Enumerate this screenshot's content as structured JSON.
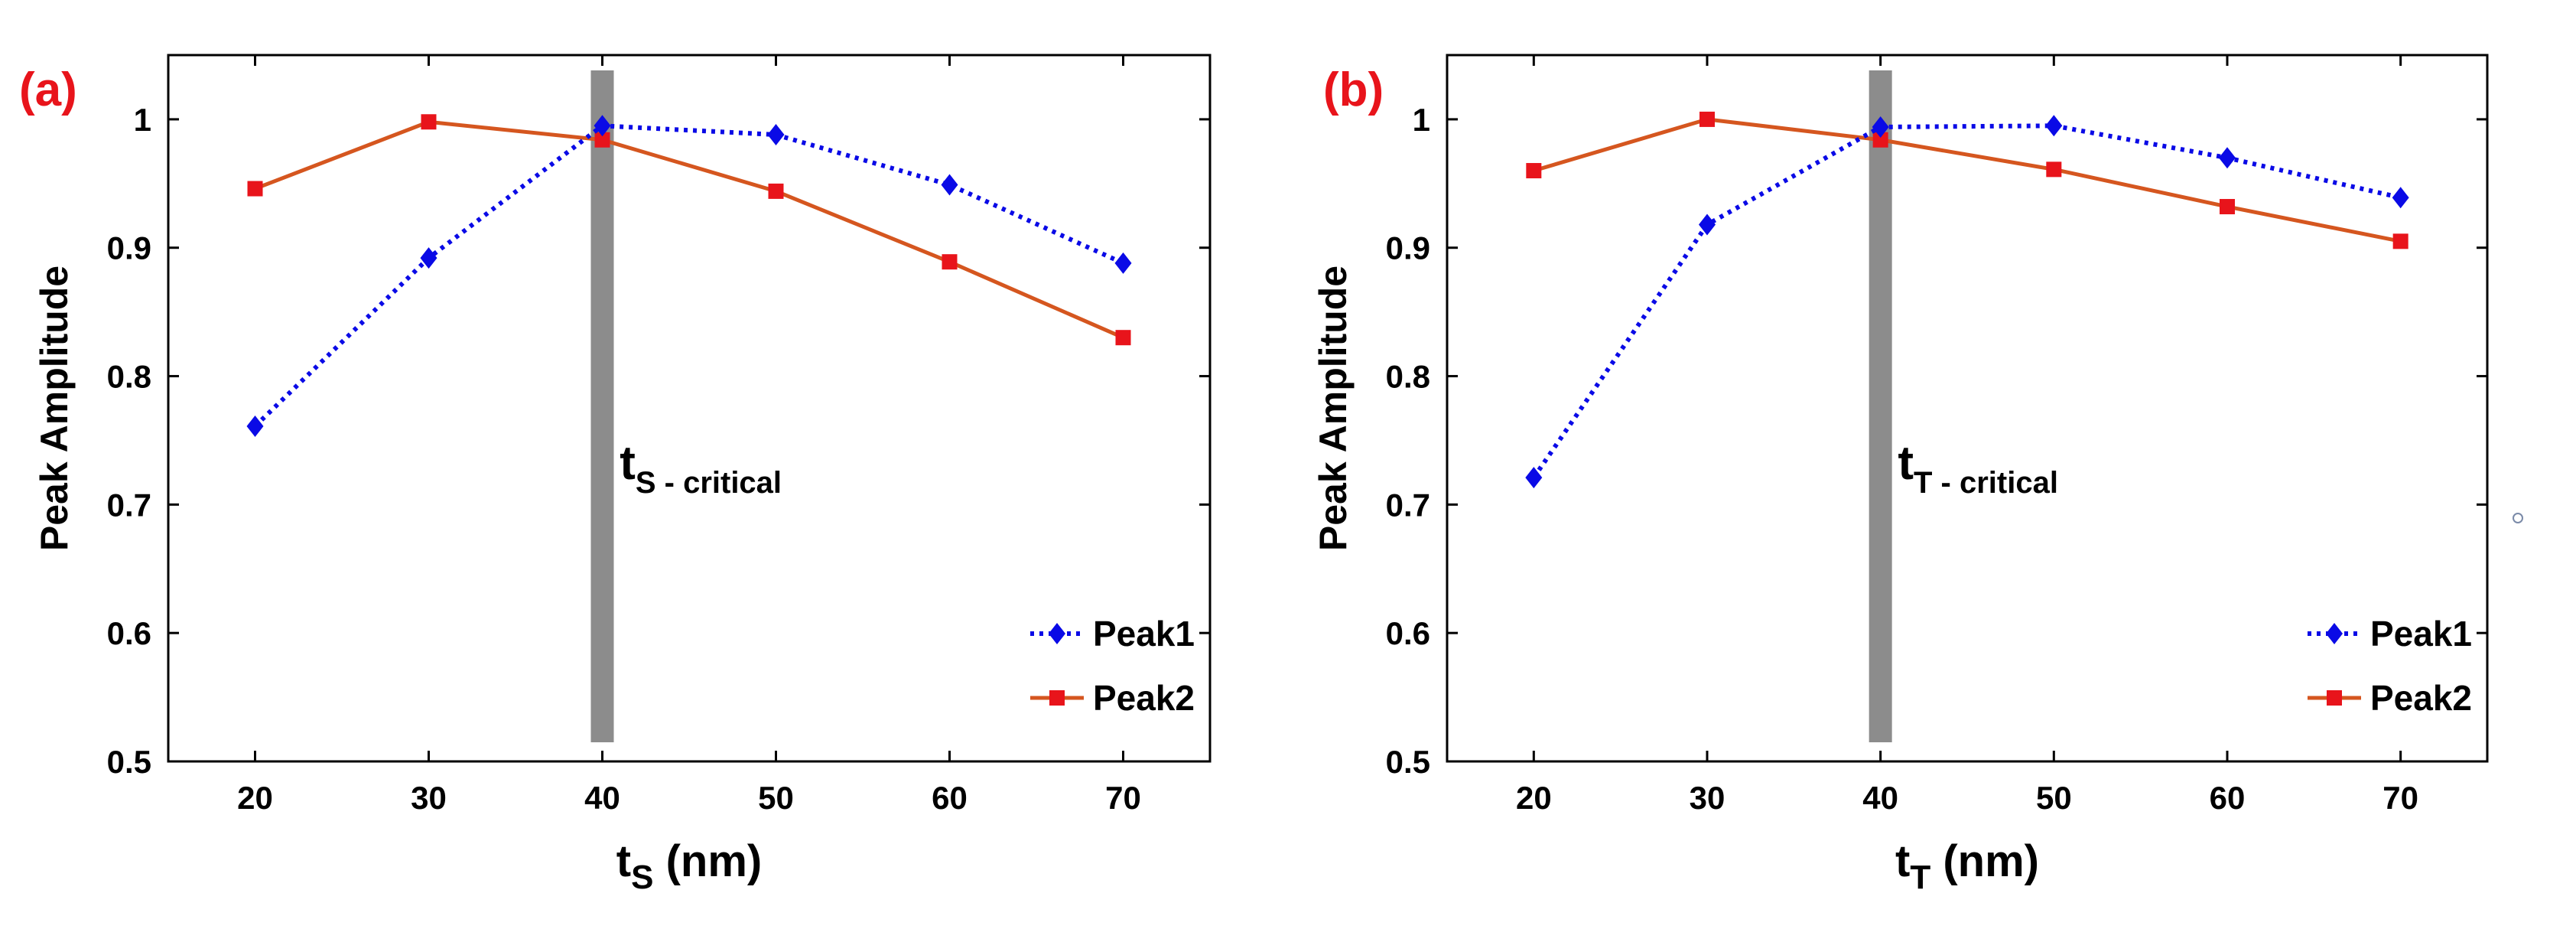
{
  "chart_data": [
    {
      "type": "line",
      "panel_label": "(a)",
      "x": [
        20,
        30,
        40,
        50,
        60,
        70
      ],
      "series": [
        {
          "name": "Peak1",
          "values": [
            0.761,
            0.892,
            0.995,
            0.988,
            0.949,
            0.888
          ],
          "color": "#0a0ae6",
          "line": "dotted",
          "marker": "diamond"
        },
        {
          "name": "Peak2",
          "values": [
            0.946,
            0.998,
            0.984,
            0.944,
            0.889,
            0.83
          ],
          "color": "#d5561f",
          "marker_color": "#e8141b",
          "line": "solid",
          "marker": "square"
        }
      ],
      "xlabel": {
        "main": "t",
        "sub": "S",
        "rest": " (nm)"
      },
      "ylabel": "Peak Amplitude",
      "xlim": [
        15,
        75
      ],
      "ylim": [
        0.5,
        1.05
      ],
      "xticks": [
        20,
        30,
        40,
        50,
        60,
        70
      ],
      "xtick_labels": [
        "20",
        "30",
        "40",
        "50",
        "60",
        "70"
      ],
      "yticks": [
        0.5,
        0.6,
        0.7,
        0.8,
        0.9,
        1.0
      ],
      "ytick_labels": [
        "0.5",
        "0.6",
        "0.7",
        "0.8",
        "0.9",
        "1"
      ],
      "critical_x": 40,
      "critical_label": {
        "main": "t",
        "sub": "S - critical"
      },
      "critical_label_pos": [
        41,
        0.72
      ],
      "band_color": "#8c8c8c",
      "grid": false,
      "legend_position": "bottom-right"
    },
    {
      "type": "line",
      "panel_label": "(b)",
      "x": [
        20,
        30,
        40,
        50,
        60,
        70
      ],
      "series": [
        {
          "name": "Peak1",
          "values": [
            0.721,
            0.918,
            0.994,
            0.995,
            0.97,
            0.939
          ],
          "color": "#0a0ae6",
          "line": "dotted",
          "marker": "diamond"
        },
        {
          "name": "Peak2",
          "values": [
            0.96,
            1.0,
            0.984,
            0.961,
            0.932,
            0.905
          ],
          "color": "#d5561f",
          "marker_color": "#e8141b",
          "line": "solid",
          "marker": "square"
        }
      ],
      "xlabel": {
        "main": "t",
        "sub": "T",
        "rest": " (nm)"
      },
      "ylabel": "Peak Amplitude",
      "xlim": [
        15,
        75
      ],
      "ylim": [
        0.5,
        1.05
      ],
      "xticks": [
        20,
        30,
        40,
        50,
        60,
        70
      ],
      "xtick_labels": [
        "20",
        "30",
        "40",
        "50",
        "60",
        "70"
      ],
      "yticks": [
        0.5,
        0.6,
        0.7,
        0.8,
        0.9,
        1.0
      ],
      "ytick_labels": [
        "0.5",
        "0.6",
        "0.7",
        "0.8",
        "0.9",
        "1"
      ],
      "critical_x": 40,
      "critical_label": {
        "main": "t",
        "sub": "T - critical"
      },
      "critical_label_pos": [
        41,
        0.72
      ],
      "band_color": "#8c8c8c",
      "grid": false,
      "legend_position": "bottom-right"
    }
  ]
}
